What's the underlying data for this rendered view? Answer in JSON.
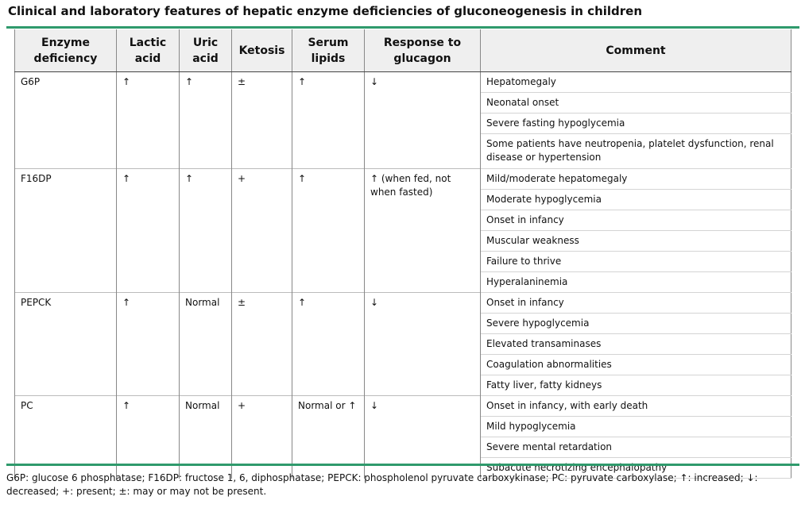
{
  "title": "Clinical and laboratory features of hepatic enzyme deficiencies of gluconeogenesis in children",
  "table": {
    "header": [
      "Enzyme deficiency",
      "Lactic acid",
      "Uric acid",
      "Ketosis",
      "Serum lipids",
      "Response to glucagon",
      "Comment"
    ],
    "rows": [
      {
        "cells": [
          "G6P",
          "↑",
          "↑",
          "±",
          "↑",
          "↓"
        ],
        "comments": [
          "Hepatomegaly",
          "Neonatal onset",
          "Severe fasting hypoglycemia",
          "Some patients have neutropenia, platelet dysfunction, renal disease or hypertension"
        ]
      },
      {
        "cells": [
          "F16DP",
          "↑",
          "↑",
          "+",
          "↑",
          "↑ (when fed, not when fasted)"
        ],
        "comments": [
          "Mild/moderate hepatomegaly",
          "Moderate hypoglycemia",
          "Onset in infancy",
          "Muscular weakness",
          "Failure to thrive",
          "Hyperalaninemia"
        ]
      },
      {
        "cells": [
          "PEPCK",
          "↑",
          "Normal",
          "±",
          "↑",
          "↓"
        ],
        "comments": [
          "Onset in infancy",
          "Severe hypoglycemia",
          "Elevated transaminases",
          "Coagulation abnormalities",
          "Fatty liver, fatty kidneys"
        ]
      },
      {
        "cells": [
          "PC",
          "↑",
          "Normal",
          "+",
          "Normal or ↑",
          "↓"
        ],
        "comments": [
          "Onset in infancy, with early death",
          "Mild hypoglycemia",
          "Severe mental retardation",
          "Subacute necrotizing encephalopathy"
        ]
      }
    ]
  },
  "footnote": "G6P: glucose 6 phosphatase; F16DP: fructose 1, 6, diphosphatase; PEPCK: phospholenol pyruvate carboxykinase; PC: pyruvate carboxylase; ↑: increased; ↓: decreased; +: present; ±: may or may not be present."
}
